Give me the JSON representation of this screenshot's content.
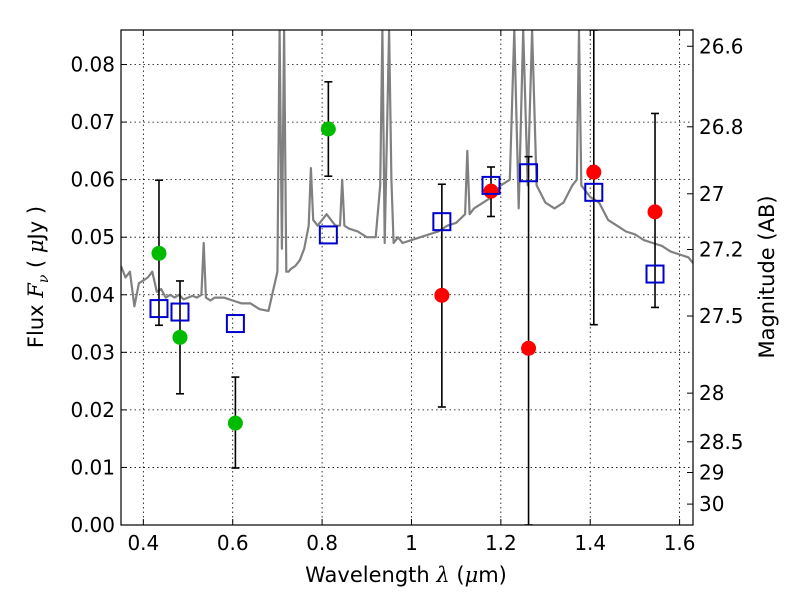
{
  "chart_data": {
    "type": "scatter",
    "title": "",
    "xlabel": "Wavelength  λ (μm)",
    "ylabel": "Flux  F_ν  ( μJy )",
    "y2label": "Magnitude (AB)",
    "xlim": [
      0.35,
      1.63
    ],
    "ylim": [
      0.0,
      0.086
    ],
    "grid": true,
    "legend": "none",
    "x_ticks": [
      {
        "v": 0.4,
        "label": "0.4"
      },
      {
        "v": 0.6,
        "label": "0.6"
      },
      {
        "v": 0.8,
        "label": "0.8"
      },
      {
        "v": 1.0,
        "label": "1"
      },
      {
        "v": 1.2,
        "label": "1.2"
      },
      {
        "v": 1.4,
        "label": "1.4"
      },
      {
        "v": 1.6,
        "label": "1.6"
      }
    ],
    "y_ticks": [
      {
        "v": 0.0,
        "label": "0.00"
      },
      {
        "v": 0.01,
        "label": "0.01"
      },
      {
        "v": 0.02,
        "label": "0.02"
      },
      {
        "v": 0.03,
        "label": "0.03"
      },
      {
        "v": 0.04,
        "label": "0.04"
      },
      {
        "v": 0.05,
        "label": "0.05"
      },
      {
        "v": 0.06,
        "label": "0.06"
      },
      {
        "v": 0.07,
        "label": "0.07"
      },
      {
        "v": 0.08,
        "label": "0.08"
      }
    ],
    "mag_ticks": [
      {
        "mag": 26.6,
        "label": "26.6"
      },
      {
        "mag": 26.8,
        "label": "26.8"
      },
      {
        "mag": 27.0,
        "label": "27"
      },
      {
        "mag": 27.2,
        "label": "27.2"
      },
      {
        "mag": 27.5,
        "label": "27.5"
      },
      {
        "mag": 28.0,
        "label": "28"
      },
      {
        "mag": 28.5,
        "label": "28.5"
      },
      {
        "mag": 29.0,
        "label": "29"
      },
      {
        "mag": 30.0,
        "label": "30"
      }
    ],
    "colors": {
      "green": "#00bb00",
      "red": "#ff0000",
      "model": "#0000cc",
      "spectrum": "#808080",
      "errorbar": "#000000"
    },
    "series": [
      {
        "marker": "circle",
        "color_key": "green",
        "points": [
          {
            "x": 0.435,
            "y": 0.0472,
            "yerr": [
              0.0125,
              0.0127
            ]
          },
          {
            "x": 0.482,
            "y": 0.0326,
            "yerr": [
              0.0098,
              0.0098
            ]
          },
          {
            "x": 0.606,
            "y": 0.0177,
            "yerr": [
              0.0078,
              0.008
            ]
          },
          {
            "x": 0.814,
            "y": 0.0688,
            "yerr": [
              0.0082,
              0.0082
            ]
          }
        ]
      },
      {
        "marker": "circle",
        "color_key": "red",
        "points": [
          {
            "x": 1.068,
            "y": 0.0399,
            "yerr": [
              0.0194,
              0.0193
            ]
          },
          {
            "x": 1.178,
            "y": 0.058,
            "yerr": [
              0.0044,
              0.0042
            ]
          },
          {
            "x": 1.262,
            "y": 0.0307,
            "yerr": [
              0.0307,
              0.0333
            ]
          },
          {
            "x": 1.408,
            "y": 0.0613,
            "yerr": [
              0.0265,
              0.0247
            ]
          },
          {
            "x": 1.545,
            "y": 0.0544,
            "yerr": [
              0.0166,
              0.0171
            ]
          }
        ]
      },
      {
        "marker": "open-square",
        "color_key": "model",
        "points": [
          {
            "x": 0.435,
            "y": 0.0376
          },
          {
            "x": 0.482,
            "y": 0.037
          },
          {
            "x": 0.606,
            "y": 0.035
          },
          {
            "x": 0.814,
            "y": 0.0504
          },
          {
            "x": 1.068,
            "y": 0.0527
          },
          {
            "x": 1.178,
            "y": 0.059
          },
          {
            "x": 1.262,
            "y": 0.0612
          },
          {
            "x": 1.408,
            "y": 0.0578
          },
          {
            "x": 1.545,
            "y": 0.0436
          }
        ]
      }
    ],
    "spectrum": {
      "x": [
        0.35,
        0.36,
        0.37,
        0.38,
        0.39,
        0.4,
        0.41,
        0.42,
        0.43,
        0.44,
        0.45,
        0.46,
        0.47,
        0.48,
        0.49,
        0.5,
        0.51,
        0.52,
        0.53,
        0.535,
        0.54,
        0.55,
        0.56,
        0.58,
        0.6,
        0.62,
        0.64,
        0.66,
        0.68,
        0.7,
        0.705,
        0.71,
        0.715,
        0.72,
        0.725,
        0.73,
        0.74,
        0.75,
        0.76,
        0.77,
        0.775,
        0.78,
        0.79,
        0.8,
        0.81,
        0.82,
        0.83,
        0.84,
        0.845,
        0.85,
        0.86,
        0.88,
        0.9,
        0.92,
        0.93,
        0.935,
        0.94,
        0.95,
        0.955,
        0.96,
        0.97,
        0.98,
        1.0,
        1.02,
        1.04,
        1.06,
        1.08,
        1.1,
        1.12,
        1.125,
        1.13,
        1.14,
        1.16,
        1.18,
        1.2,
        1.22,
        1.23,
        1.24,
        1.25,
        1.26,
        1.27,
        1.28,
        1.3,
        1.32,
        1.34,
        1.36,
        1.37,
        1.375,
        1.38,
        1.4,
        1.42,
        1.44,
        1.46,
        1.48,
        1.5,
        1.52,
        1.54,
        1.56,
        1.58,
        1.6,
        1.62,
        1.63
      ],
      "y": [
        0.045,
        0.043,
        0.044,
        0.038,
        0.042,
        0.0425,
        0.043,
        0.044,
        0.0405,
        0.041,
        0.0395,
        0.04,
        0.0395,
        0.04,
        0.0392,
        0.0395,
        0.0398,
        0.0395,
        0.04,
        0.049,
        0.0395,
        0.039,
        0.0395,
        0.0395,
        0.039,
        0.0385,
        0.0385,
        0.0375,
        0.0372,
        0.044,
        0.086,
        0.048,
        0.086,
        0.044,
        0.044,
        0.0445,
        0.045,
        0.046,
        0.048,
        0.052,
        0.062,
        0.053,
        0.052,
        0.053,
        0.054,
        0.053,
        0.052,
        0.052,
        0.06,
        0.052,
        0.0515,
        0.051,
        0.05,
        0.05,
        0.059,
        0.086,
        0.049,
        0.086,
        0.06,
        0.049,
        0.05,
        0.049,
        0.0495,
        0.05,
        0.0505,
        0.051,
        0.052,
        0.0525,
        0.054,
        0.065,
        0.054,
        0.055,
        0.056,
        0.057,
        0.059,
        0.06,
        0.086,
        0.055,
        0.086,
        0.059,
        0.086,
        0.059,
        0.056,
        0.055,
        0.056,
        0.059,
        0.06,
        0.086,
        0.059,
        0.057,
        0.056,
        0.053,
        0.052,
        0.051,
        0.0505,
        0.0495,
        0.049,
        0.0485,
        0.0475,
        0.047,
        0.0465,
        0.0455
      ]
    }
  }
}
